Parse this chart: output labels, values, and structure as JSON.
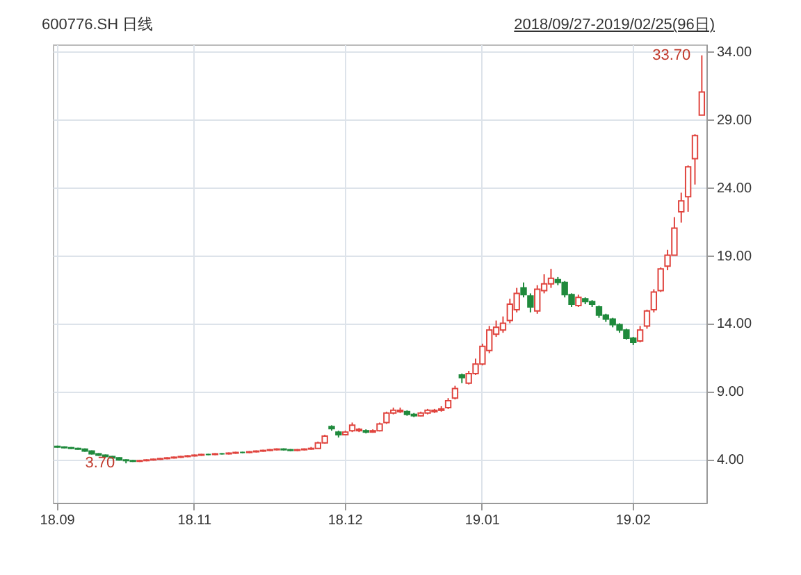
{
  "chart_data": {
    "type": "candlestick",
    "title": "600776.SH 日线",
    "subtitle": "2018/09/27-2019/02/25(96日)",
    "categories": [
      "18.09",
      null,
      null,
      null,
      null,
      null,
      null,
      null,
      null,
      null,
      null,
      null,
      null,
      null,
      null,
      null,
      null,
      null,
      null,
      null,
      "18.11",
      null,
      null,
      null,
      null,
      null,
      null,
      null,
      null,
      null,
      null,
      null,
      null,
      null,
      null,
      null,
      null,
      null,
      null,
      null,
      null,
      null,
      "18.12",
      null,
      null,
      null,
      null,
      null,
      null,
      null,
      null,
      null,
      null,
      null,
      null,
      null,
      null,
      null,
      null,
      null,
      null,
      null,
      "19.01",
      null,
      null,
      null,
      null,
      null,
      null,
      null,
      null,
      null,
      null,
      null,
      null,
      null,
      null,
      null,
      null,
      null,
      null,
      null,
      null,
      null,
      "19.02",
      null,
      null,
      null,
      null,
      null,
      null,
      null,
      null,
      null,
      null
    ],
    "ohlc": [
      [
        4.95,
        5.0,
        4.85,
        4.9
      ],
      [
        4.9,
        4.95,
        4.8,
        4.85
      ],
      [
        4.85,
        4.9,
        4.75,
        4.8
      ],
      [
        4.8,
        4.85,
        4.7,
        4.75
      ],
      [
        4.75,
        4.8,
        4.55,
        4.6
      ],
      [
        4.6,
        4.65,
        4.35,
        4.4
      ],
      [
        4.4,
        4.45,
        4.25,
        4.3
      ],
      [
        4.3,
        4.35,
        4.15,
        4.2
      ],
      [
        4.2,
        4.25,
        4.05,
        4.1
      ],
      [
        4.1,
        4.15,
        3.9,
        3.95
      ],
      [
        3.95,
        4.0,
        3.7,
        3.9
      ],
      [
        3.9,
        3.95,
        3.8,
        3.85
      ],
      [
        3.85,
        3.95,
        3.8,
        3.9
      ],
      [
        3.9,
        4.0,
        3.85,
        3.95
      ],
      [
        3.95,
        4.05,
        3.9,
        4.0
      ],
      [
        4.0,
        4.1,
        3.95,
        4.05
      ],
      [
        4.05,
        4.15,
        4.0,
        4.1
      ],
      [
        4.1,
        4.2,
        4.05,
        4.15
      ],
      [
        4.15,
        4.25,
        4.1,
        4.2
      ],
      [
        4.2,
        4.3,
        4.15,
        4.25
      ],
      [
        4.25,
        4.35,
        4.2,
        4.3
      ],
      [
        4.3,
        4.4,
        4.25,
        4.35
      ],
      [
        4.35,
        4.4,
        4.3,
        4.35
      ],
      [
        4.35,
        4.45,
        4.3,
        4.4
      ],
      [
        4.4,
        4.45,
        4.35,
        4.4
      ],
      [
        4.4,
        4.5,
        4.35,
        4.45
      ],
      [
        4.45,
        4.55,
        4.4,
        4.5
      ],
      [
        4.5,
        4.55,
        4.45,
        4.5
      ],
      [
        4.5,
        4.6,
        4.45,
        4.55
      ],
      [
        4.55,
        4.65,
        4.5,
        4.6
      ],
      [
        4.6,
        4.7,
        4.55,
        4.65
      ],
      [
        4.65,
        4.75,
        4.6,
        4.7
      ],
      [
        4.7,
        4.8,
        4.65,
        4.75
      ],
      [
        4.75,
        4.8,
        4.65,
        4.7
      ],
      [
        4.7,
        4.75,
        4.6,
        4.65
      ],
      [
        4.65,
        4.75,
        4.6,
        4.7
      ],
      [
        4.7,
        4.8,
        4.65,
        4.75
      ],
      [
        4.75,
        4.9,
        4.7,
        4.8
      ],
      [
        4.8,
        5.3,
        4.8,
        5.2
      ],
      [
        5.2,
        5.8,
        5.15,
        5.7
      ],
      [
        6.4,
        6.5,
        6.1,
        6.25
      ],
      [
        6.0,
        6.1,
        5.6,
        5.8
      ],
      [
        5.8,
        6.1,
        5.75,
        6.0
      ],
      [
        6.1,
        6.7,
        6.0,
        6.5
      ],
      [
        6.1,
        6.3,
        6.0,
        6.2
      ],
      [
        6.1,
        6.2,
        5.9,
        6.0
      ],
      [
        6.0,
        6.2,
        5.95,
        6.1
      ],
      [
        6.1,
        6.7,
        6.05,
        6.6
      ],
      [
        6.7,
        7.5,
        6.6,
        7.4
      ],
      [
        7.4,
        7.8,
        7.3,
        7.6
      ],
      [
        7.5,
        7.8,
        7.4,
        7.6
      ],
      [
        7.5,
        7.6,
        7.2,
        7.3
      ],
      [
        7.3,
        7.4,
        7.1,
        7.2
      ],
      [
        7.2,
        7.5,
        7.15,
        7.4
      ],
      [
        7.4,
        7.7,
        7.3,
        7.6
      ],
      [
        7.5,
        7.7,
        7.4,
        7.6
      ],
      [
        7.6,
        7.9,
        7.5,
        7.7
      ],
      [
        7.8,
        8.5,
        7.7,
        8.3
      ],
      [
        8.5,
        9.4,
        8.4,
        9.2
      ],
      [
        10.2,
        10.3,
        9.6,
        10.0
      ],
      [
        9.6,
        10.5,
        9.5,
        10.3
      ],
      [
        10.3,
        11.4,
        10.2,
        11.0
      ],
      [
        11.0,
        12.5,
        10.9,
        12.3
      ],
      [
        12.0,
        13.8,
        11.8,
        13.5
      ],
      [
        13.2,
        14.2,
        13.0,
        13.7
      ],
      [
        13.5,
        14.5,
        13.3,
        14.0
      ],
      [
        14.2,
        15.8,
        14.0,
        15.4
      ],
      [
        15.0,
        16.6,
        14.8,
        16.2
      ],
      [
        16.6,
        17.0,
        15.9,
        16.1
      ],
      [
        16.0,
        16.2,
        14.8,
        15.2
      ],
      [
        14.9,
        16.8,
        14.7,
        16.5
      ],
      [
        16.4,
        17.6,
        16.2,
        16.9
      ],
      [
        16.9,
        18.0,
        16.6,
        17.3
      ],
      [
        17.2,
        17.4,
        16.8,
        17.0
      ],
      [
        17.0,
        17.1,
        15.9,
        16.1
      ],
      [
        16.1,
        16.2,
        15.2,
        15.4
      ],
      [
        15.3,
        16.1,
        15.2,
        15.9
      ],
      [
        15.8,
        15.9,
        15.4,
        15.6
      ],
      [
        15.6,
        15.7,
        15.2,
        15.4
      ],
      [
        15.2,
        15.3,
        14.4,
        14.6
      ],
      [
        14.6,
        14.7,
        14.1,
        14.3
      ],
      [
        14.3,
        14.4,
        13.7,
        13.9
      ],
      [
        13.9,
        14.0,
        13.3,
        13.5
      ],
      [
        13.5,
        13.6,
        12.8,
        12.9
      ],
      [
        12.9,
        13.0,
        12.4,
        12.6
      ],
      [
        12.7,
        13.8,
        12.6,
        13.5
      ],
      [
        13.8,
        15.0,
        13.6,
        14.9
      ],
      [
        15.0,
        16.5,
        14.8,
        16.3
      ],
      [
        16.4,
        18.1,
        16.3,
        18.0
      ],
      [
        18.2,
        19.4,
        17.9,
        19.0
      ],
      [
        19.0,
        21.8,
        19.0,
        21.0
      ],
      [
        22.2,
        23.6,
        21.4,
        23.0
      ],
      [
        23.3,
        25.6,
        22.2,
        25.5
      ],
      [
        26.1,
        27.9,
        24.2,
        27.8
      ],
      [
        29.3,
        33.7,
        29.3,
        31.0
      ]
    ],
    "colors": [
      "#1f8a3c",
      "#1f8a3c",
      "#1f8a3c",
      "#1f8a3c",
      "#1f8a3c",
      "#1f8a3c",
      "#1f8a3c",
      "#1f8a3c",
      "#1f8a3c",
      "#1f8a3c",
      "#1f8a3c",
      "#1f8a3c",
      "#e0443e",
      "#e0443e",
      "#e0443e",
      "#e0443e",
      "#e0443e",
      "#e0443e",
      "#e0443e",
      "#e0443e",
      "#e0443e",
      "#e0443e",
      "#1f8a3c",
      "#e0443e",
      "#1f8a3c",
      "#e0443e",
      "#e0443e",
      "#1f8a3c",
      "#e0443e",
      "#e0443e",
      "#e0443e",
      "#e0443e",
      "#e0443e",
      "#1f8a3c",
      "#1f8a3c",
      "#e0443e",
      "#e0443e",
      "#e0443e",
      "#e0443e",
      "#e0443e",
      "#1f8a3c",
      "#1f8a3c",
      "#e0443e",
      "#e0443e",
      "#e0443e",
      "#1f8a3c",
      "#e0443e",
      "#e0443e",
      "#e0443e",
      "#e0443e",
      "#e0443e",
      "#1f8a3c",
      "#1f8a3c",
      "#e0443e",
      "#e0443e",
      "#e0443e",
      "#e0443e",
      "#e0443e",
      "#e0443e",
      "#1f8a3c",
      "#e0443e",
      "#e0443e",
      "#e0443e",
      "#e0443e",
      "#e0443e",
      "#e0443e",
      "#e0443e",
      "#e0443e",
      "#1f8a3c",
      "#1f8a3c",
      "#e0443e",
      "#e0443e",
      "#e0443e",
      "#1f8a3c",
      "#1f8a3c",
      "#1f8a3c",
      "#e0443e",
      "#1f8a3c",
      "#1f8a3c",
      "#1f8a3c",
      "#1f8a3c",
      "#1f8a3c",
      "#1f8a3c",
      "#1f8a3c",
      "#1f8a3c",
      "#e0443e",
      "#e0443e",
      "#e0443e",
      "#e0443e",
      "#e0443e",
      "#e0443e",
      "#e0443e",
      "#e0443e",
      "#e0443e",
      "#e0443e"
    ],
    "ylim": [
      0.8,
      34.5
    ],
    "yticks": [
      {
        "value": 4,
        "label": "4.00"
      },
      {
        "value": 9,
        "label": "9.00"
      },
      {
        "value": 14,
        "label": "14.00"
      },
      {
        "value": 19,
        "label": "19.00"
      },
      {
        "value": 24,
        "label": "24.00"
      },
      {
        "value": 29,
        "label": "29.00"
      },
      {
        "value": 34,
        "label": "34.00"
      }
    ],
    "grid": true,
    "annotations": [
      "3.70",
      "33.70"
    ]
  }
}
